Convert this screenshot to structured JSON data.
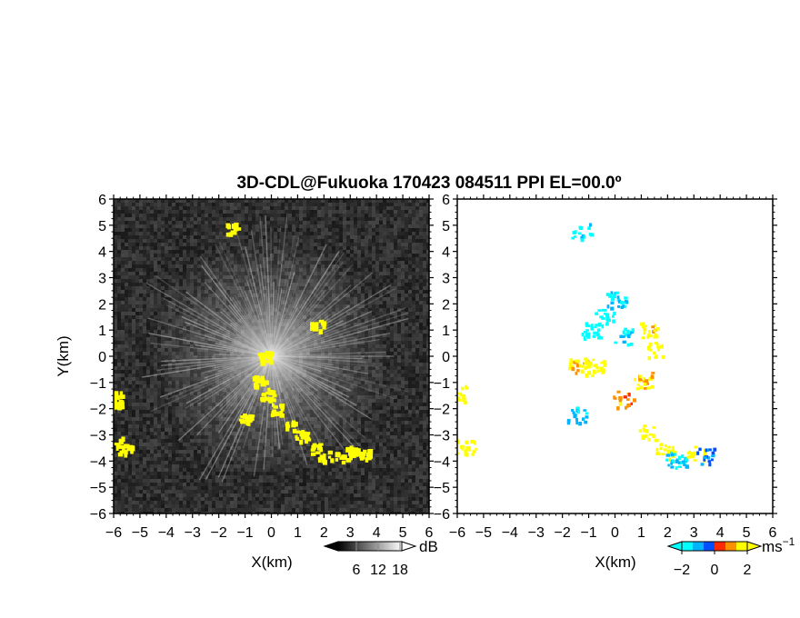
{
  "chart_data": [
    {
      "type": "heatmap",
      "title": "3D-CDL@Fukuoka 170423 084511 PPI EL=00.0º",
      "variable": "reflectivity (grayscale) with yellow highlighted echoes",
      "xlabel": "X(km)",
      "ylabel": "Y(km)",
      "xlim": [
        -6,
        6
      ],
      "ylim": [
        -6,
        6
      ],
      "xticks": [
        "−6",
        "−5",
        "−4",
        "−3",
        "−2",
        "−1",
        "0",
        "1",
        "2",
        "3",
        "4",
        "5",
        "6"
      ],
      "yticks": [
        "6",
        "5",
        "4",
        "3",
        "2",
        "1",
        "0",
        "−1",
        "−2",
        "−3",
        "−4",
        "−5",
        "−6"
      ],
      "background_color": "#2b2b2b",
      "highlight_color": "#ffff00",
      "highlight_regions": [
        {
          "x": -6.0,
          "y": -1.3
        },
        {
          "x": -6.0,
          "y": -1.8
        },
        {
          "x": -5.8,
          "y": -3.2
        },
        {
          "x": -5.6,
          "y": -3.5
        },
        {
          "x": -0.5,
          "y": -0.9
        },
        {
          "x": -0.2,
          "y": -1.4
        },
        {
          "x": 0.2,
          "y": -2.0
        },
        {
          "x": 0.6,
          "y": -2.6
        },
        {
          "x": 1.1,
          "y": -3.0
        },
        {
          "x": 1.6,
          "y": -3.5
        },
        {
          "x": 2.0,
          "y": -3.8
        },
        {
          "x": 2.6,
          "y": -3.8
        },
        {
          "x": 3.0,
          "y": -3.6
        },
        {
          "x": 3.5,
          "y": -3.7
        },
        {
          "x": -1.5,
          "y": 4.9
        },
        {
          "x": 1.7,
          "y": 1.2
        },
        {
          "x": -0.3,
          "y": 0.0
        },
        {
          "x": -1.0,
          "y": -2.3
        }
      ],
      "colorbar": {
        "unit": "dB",
        "ticks": [
          "6",
          "12",
          "18"
        ],
        "colors": [
          "#000000",
          "#ffffff"
        ]
      }
    },
    {
      "type": "heatmap",
      "variable": "Doppler velocity",
      "xlabel": "X(km)",
      "xlim": [
        -6,
        6
      ],
      "ylim": [
        -6,
        6
      ],
      "xticks": [
        "−6",
        "−5",
        "−4",
        "−3",
        "−2",
        "−1",
        "0",
        "1",
        "2",
        "3",
        "4",
        "5",
        "6"
      ],
      "yticks": [
        "6",
        "5",
        "4",
        "3",
        "2",
        "1",
        "0",
        "−1",
        "−2",
        "−3",
        "−4",
        "−5",
        "−6"
      ],
      "colorbar": {
        "unit": "ms",
        "unit_exponent": "−1",
        "ticks": [
          "−2",
          "0",
          "2"
        ],
        "range": [
          -2,
          2
        ],
        "colors": [
          "#00ffff",
          "#00b4ff",
          "#0050ff",
          "#ff2a00",
          "#ff9000",
          "#ffff00"
        ]
      },
      "velocity_features": [
        {
          "x": -1.3,
          "y": 4.8,
          "v": -1.5
        },
        {
          "x": -6.0,
          "y": -1.4,
          "v": 2.0
        },
        {
          "x": -5.7,
          "y": -3.4,
          "v": 2.0
        },
        {
          "x": -1.5,
          "y": -2.2,
          "v": -1.0
        },
        {
          "x": -0.4,
          "y": 1.5,
          "v": -1.8
        },
        {
          "x": 0.0,
          "y": 2.2,
          "v": -1.2
        },
        {
          "x": -0.9,
          "y": 1.0,
          "v": -2.0
        },
        {
          "x": 0.3,
          "y": 0.8,
          "v": -1.4
        },
        {
          "x": 1.2,
          "y": 1.0,
          "v": 1.6
        },
        {
          "x": 1.5,
          "y": 0.3,
          "v": 1.8
        },
        {
          "x": -1.4,
          "y": -0.3,
          "v": 1.5
        },
        {
          "x": -0.8,
          "y": -0.4,
          "v": 2.0
        },
        {
          "x": 1.0,
          "y": -0.9,
          "v": 1.4
        },
        {
          "x": 0.3,
          "y": -1.6,
          "v": 1.0
        },
        {
          "x": 1.2,
          "y": -2.9,
          "v": 2.0
        },
        {
          "x": 1.9,
          "y": -3.6,
          "v": 1.8
        },
        {
          "x": 2.3,
          "y": -3.9,
          "v": -1.2
        },
        {
          "x": 3.0,
          "y": -3.7,
          "v": 2.0
        },
        {
          "x": 3.4,
          "y": -3.8,
          "v": -0.6
        }
      ]
    }
  ]
}
